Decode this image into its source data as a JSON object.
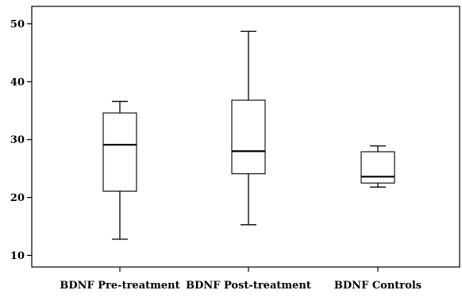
{
  "chart_data": {
    "type": "box",
    "title": "",
    "xlabel": "",
    "ylabel": "",
    "ylim": [
      8,
      53
    ],
    "yticks": [
      10,
      20,
      30,
      40,
      50
    ],
    "grid": false,
    "categories": [
      "BDNF Pre-treatment",
      "BDNF Post-treatment",
      "BDNF Controls"
    ],
    "boxes": [
      {
        "min": 12.8,
        "q1": 21.1,
        "median": 29.1,
        "q3": 34.6,
        "max": 36.6
      },
      {
        "min": 15.3,
        "q1": 24.1,
        "median": 28.0,
        "q3": 36.8,
        "max": 48.7
      },
      {
        "min": 21.8,
        "q1": 22.5,
        "median": 23.6,
        "q3": 27.9,
        "max": 28.9
      }
    ]
  }
}
